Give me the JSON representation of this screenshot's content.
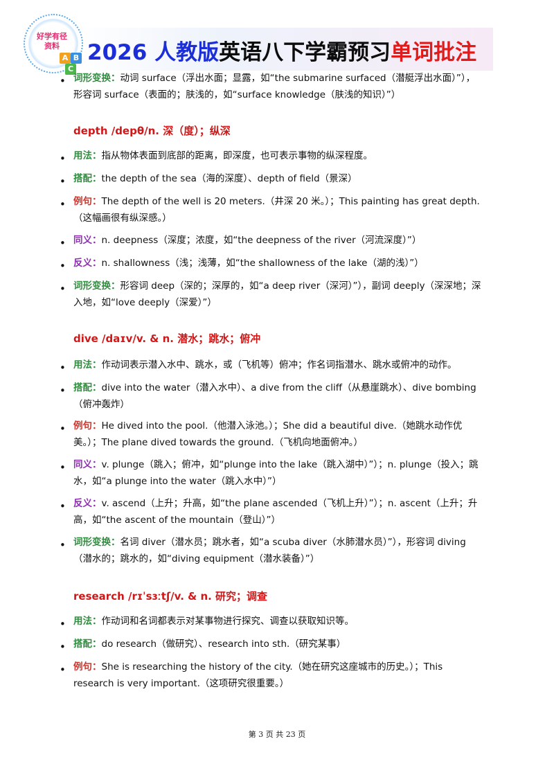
{
  "header": {
    "logo_text_line1": "好学有径",
    "logo_text_line2": "资料",
    "blocks": [
      "A",
      "B",
      "C"
    ],
    "title_year": "2026",
    "title_publisher": "人教版",
    "title_subject": "英语八下学霸预习",
    "title_topic": "单词批注"
  },
  "colors": {
    "headword": "#d01818",
    "usage": "#2f8e3e",
    "example": "#d0342c",
    "synonym": "#8d2fb0",
    "title_blue": "#1c2fd6",
    "title_red": "#e31a1a"
  },
  "labels": {
    "usage": "用法：",
    "collocation": "搭配：",
    "example": "例句：",
    "synonym": "同义：",
    "antonym": "反义：",
    "morph": "词形变换："
  },
  "intro_item": {
    "label": "词形变换：",
    "text": "动词 surface（浮出水面；显露，如“the submarine surfaced（潜艇浮出水面）”），形容词 surface（表面的；肤浅的，如“surface knowledge（肤浅的知识）”）"
  },
  "entries": [
    {
      "headword": "depth /depθ/n. 深（度）；纵深",
      "usage": "指从物体表面到底部的距离，即深度，也可表示事物的纵深程度。",
      "collocation": "the depth of the sea（海的深度）、depth of field（景深）",
      "example": "The depth of the well is 20 meters.（井深 20 米。）；This painting has great depth.（这幅画很有纵深感。）",
      "synonym": "n. deepness（深度；浓度，如“the deepness of the river（河流深度）”）",
      "antonym": "n. shallowness（浅；浅薄，如“the shallowness of the lake（湖的浅）”）",
      "morph": "形容词 deep（深的；深厚的，如“a deep river（深河）”），副词 deeply（深深地；深入地，如“love deeply（深爱）”）"
    },
    {
      "headword": "dive /daɪv/v. & n. 潜水；跳水；俯冲",
      "usage": "作动词表示潜入水中、跳水，或（飞机等）俯冲；作名词指潜水、跳水或俯冲的动作。",
      "collocation": "dive into the water（潜入水中）、a dive from the cliff（从悬崖跳水）、dive bombing（俯冲轰炸）",
      "example": "He dived into the pool.（他潜入泳池。）；She did a beautiful dive.（她跳水动作优美。）；The plane dived towards the ground.（飞机向地面俯冲。）",
      "synonym": "v. plunge（跳入；俯冲，如“plunge into the lake（跳入湖中）”）；n. plunge（投入；跳水，如“a plunge into the water（跳入水中）”）",
      "antonym": "v. ascend（上升；升高，如“the plane ascended（飞机上升）”）；n. ascent（上升；升高，如“the ascent of the mountain（登山）”）",
      "morph": "名词 diver（潜水员；跳水者，如“a scuba diver（水肺潜水员）”），形容词 diving（潜水的；跳水的，如“diving equipment（潜水装备）”）"
    },
    {
      "headword": "research /rɪˈsɜːtʃ/v. & n. 研究；调查",
      "usage": "作动词和名词都表示对某事物进行探究、调查以获取知识等。",
      "collocation": "do research（做研究）、research into sth.（研究某事）",
      "example": "She is researching the history of the city.（她在研究这座城市的历史。）；This research is very important.（这项研究很重要。）"
    }
  ],
  "footer": {
    "text": "第 3 页 共 23 页"
  }
}
